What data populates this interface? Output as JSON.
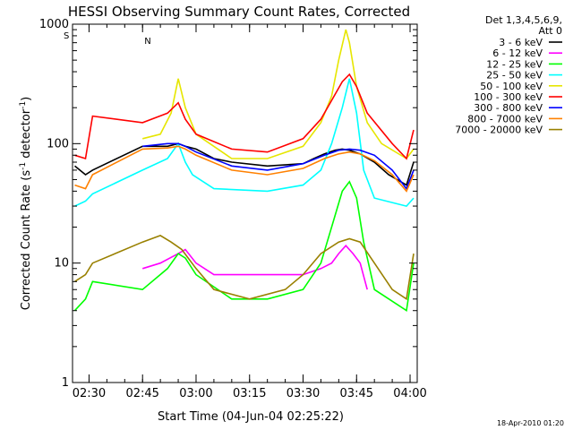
{
  "chart_data": {
    "type": "line",
    "title": "HESSI Observing Summary Count Rates, Corrected",
    "xlabel": "Start Time (04-Jun-04 02:25:22)",
    "ylabel_main": "Corrected Count Rate (s",
    "ylabel_sup1": "-1",
    "ylabel_mid": " detector",
    "ylabel_sup2": "-1",
    "ylabel_end": ")",
    "yscale": "log",
    "ylim": [
      1,
      1000
    ],
    "xlim": [
      "02:25:22",
      "04:02:00"
    ],
    "x_ticks": [
      "02:30",
      "02:45",
      "03:00",
      "03:15",
      "03:30",
      "03:45",
      "04:00"
    ],
    "y_ticks": [
      "1",
      "10",
      "100",
      "1000"
    ],
    "legend_header": [
      "Det 1,3,4,5,6,9,",
      "Att 0"
    ],
    "legend_position": "right",
    "footer": "18-Apr-2010 01:20",
    "flag_markers": {
      "s": "S",
      "n": "N"
    },
    "series": [
      {
        "name": "3 - 6 keV",
        "color": "#000000",
        "x": [
          "02:26",
          "02:29",
          "02:31",
          "02:45",
          "02:52",
          "02:55",
          "02:57",
          "03:00",
          "03:05",
          "03:10",
          "03:20",
          "03:30",
          "03:33",
          "03:36",
          "03:39",
          "03:41",
          "03:43",
          "03:46",
          "03:50",
          "03:54",
          "03:59",
          "04:01"
        ],
        "y": [
          65,
          55,
          60,
          95,
          95,
          100,
          95,
          90,
          75,
          70,
          65,
          68,
          75,
          82,
          88,
          90,
          88,
          82,
          70,
          55,
          45,
          70
        ]
      },
      {
        "name": "6 - 12 keV",
        "color": "#ff00ff",
        "x": [
          "02:45",
          "02:50",
          "02:55",
          "02:57",
          "03:00",
          "03:05",
          "03:30",
          "03:35",
          "03:38",
          "03:40",
          "03:42",
          "03:44",
          "03:46",
          "03:48"
        ],
        "y": [
          9,
          10,
          12,
          13,
          10,
          8,
          8,
          9,
          10,
          12,
          14,
          12,
          10,
          6
        ]
      },
      {
        "name": "12 - 25 keV",
        "color": "#00ff00",
        "x": [
          "02:26",
          "02:29",
          "02:31",
          "02:45",
          "02:52",
          "02:55",
          "02:57",
          "03:00",
          "03:10",
          "03:20",
          "03:30",
          "03:35",
          "03:38",
          "03:41",
          "03:43",
          "03:45",
          "03:47",
          "03:50",
          "03:59",
          "04:01"
        ],
        "y": [
          4,
          5,
          7,
          6,
          9,
          12,
          11,
          8,
          5,
          5,
          6,
          10,
          20,
          40,
          48,
          35,
          15,
          6,
          4,
          10
        ]
      },
      {
        "name": "25 - 50 keV",
        "color": "#00ffff",
        "x": [
          "02:26",
          "02:29",
          "02:31",
          "02:45",
          "02:52",
          "02:55",
          "02:57",
          "02:59",
          "03:05",
          "03:20",
          "03:30",
          "03:35",
          "03:38",
          "03:41",
          "03:43",
          "03:45",
          "03:47",
          "03:50",
          "03:59",
          "04:01"
        ],
        "y": [
          30,
          33,
          38,
          60,
          75,
          100,
          70,
          55,
          42,
          40,
          45,
          60,
          100,
          200,
          350,
          180,
          60,
          35,
          30,
          35
        ]
      },
      {
        "name": "50 - 100 keV",
        "color": "#e6e600",
        "x": [
          "02:45",
          "02:50",
          "02:53",
          "02:55",
          "02:57",
          "03:00",
          "03:10",
          "03:20",
          "03:30",
          "03:35",
          "03:38",
          "03:40",
          "03:42",
          "03:43",
          "03:45",
          "03:48",
          "03:52",
          "03:59",
          "04:01"
        ],
        "y": [
          110,
          120,
          180,
          350,
          200,
          120,
          75,
          75,
          95,
          150,
          250,
          500,
          900,
          700,
          300,
          150,
          100,
          75,
          90
        ]
      },
      {
        "name": "100 - 300 keV",
        "color": "#ff0000",
        "x": [
          "02:26",
          "02:29",
          "02:31",
          "02:45",
          "02:52",
          "02:55",
          "02:57",
          "03:00",
          "03:10",
          "03:20",
          "03:30",
          "03:35",
          "03:38",
          "03:41",
          "03:43",
          "03:45",
          "03:48",
          "03:55",
          "03:59",
          "04:01"
        ],
        "y": [
          80,
          75,
          170,
          150,
          180,
          220,
          160,
          120,
          90,
          85,
          110,
          160,
          230,
          330,
          380,
          300,
          180,
          100,
          75,
          130
        ]
      },
      {
        "name": "300 - 800 keV",
        "color": "#0000ff",
        "x": [
          "02:45",
          "02:52",
          "02:55",
          "02:57",
          "03:00",
          "03:10",
          "03:20",
          "03:30",
          "03:36",
          "03:40",
          "03:43",
          "03:46",
          "03:50",
          "03:55",
          "03:59",
          "04:01"
        ],
        "y": [
          95,
          100,
          100,
          95,
          85,
          65,
          60,
          68,
          80,
          88,
          90,
          88,
          80,
          60,
          42,
          60
        ]
      },
      {
        "name": "800 - 7000 keV",
        "color": "#ff8000",
        "x": [
          "02:26",
          "02:29",
          "02:31",
          "02:45",
          "02:52",
          "02:55",
          "02:57",
          "03:00",
          "03:10",
          "03:20",
          "03:30",
          "03:36",
          "03:40",
          "03:43",
          "03:46",
          "03:50",
          "03:55",
          "03:59",
          "04:01"
        ],
        "y": [
          45,
          42,
          55,
          90,
          92,
          95,
          90,
          80,
          60,
          55,
          62,
          75,
          82,
          85,
          82,
          72,
          55,
          40,
          55
        ]
      },
      {
        "name": "7000 - 20000 keV",
        "color": "#998000",
        "x": [
          "02:26",
          "02:29",
          "02:31",
          "02:45",
          "02:50",
          "02:53",
          "02:56",
          "03:00",
          "03:05",
          "03:15",
          "03:25",
          "03:30",
          "03:35",
          "03:40",
          "03:43",
          "03:46",
          "03:50",
          "03:55",
          "03:59",
          "04:01"
        ],
        "y": [
          7,
          8,
          10,
          15,
          17,
          15,
          13,
          9,
          6,
          5,
          6,
          8,
          12,
          15,
          16,
          15,
          10,
          6,
          5,
          12
        ]
      }
    ]
  }
}
